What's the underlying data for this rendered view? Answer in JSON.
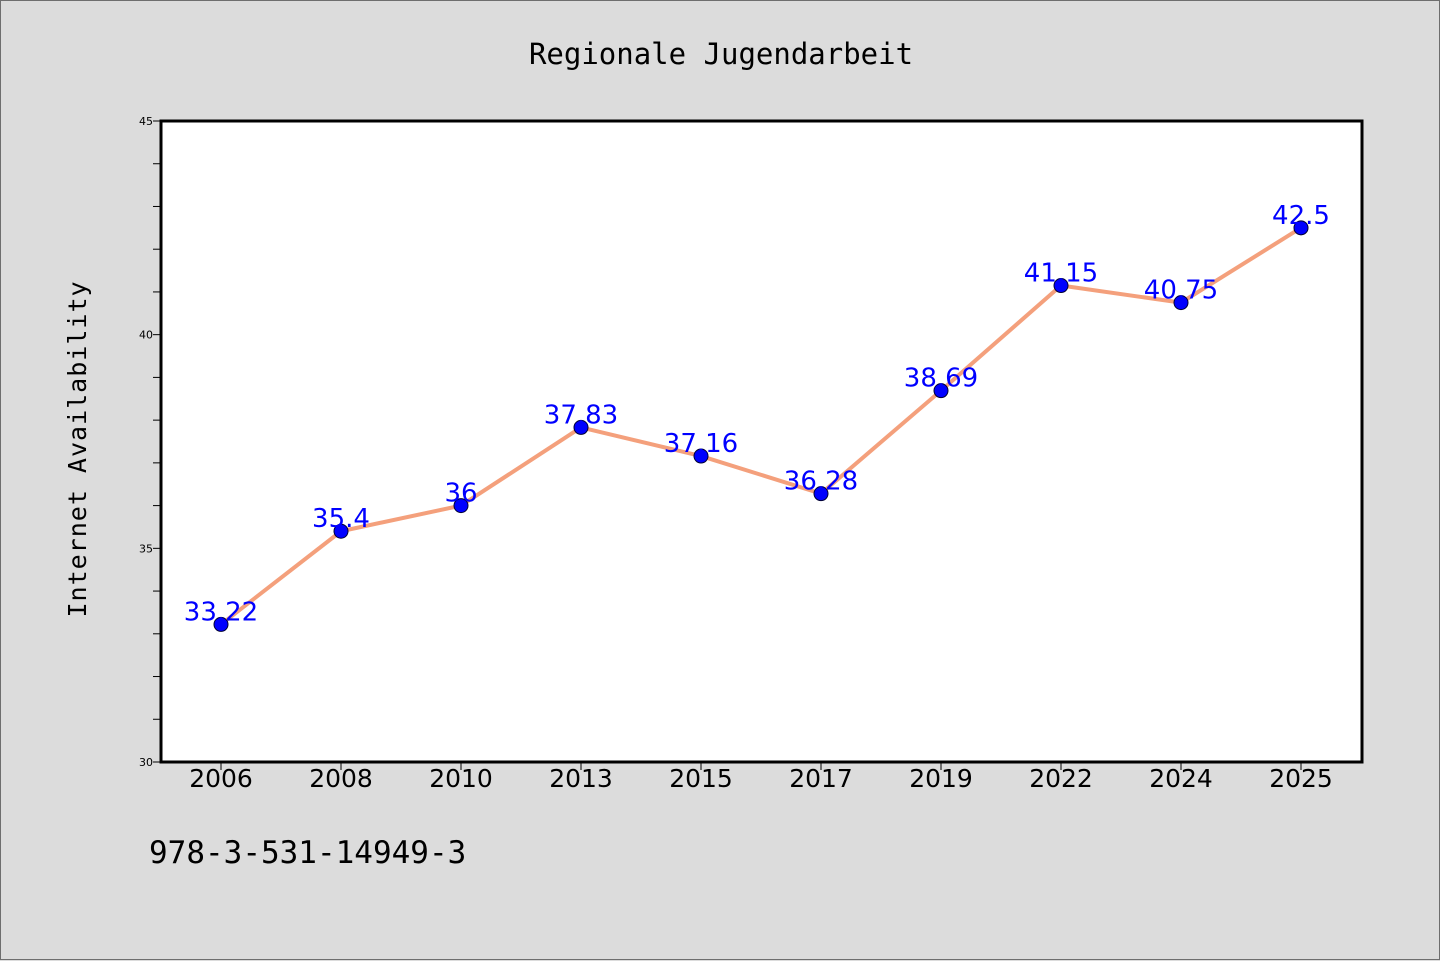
{
  "footer_code": "978-3-531-14949-3",
  "chart_data": {
    "type": "line",
    "title": "Regionale Jugendarbeit",
    "xlabel": "",
    "ylabel": "Internet Availability",
    "categories": [
      "2006",
      "2008",
      "2010",
      "2013",
      "2015",
      "2017",
      "2019",
      "2022",
      "2024",
      "2025"
    ],
    "series": [
      {
        "values": [
          33.22,
          35.4,
          36,
          37.83,
          37.16,
          36.28,
          38.69,
          41.15,
          40.75,
          42.5
        ],
        "labels": [
          "33.22",
          "35.4",
          "36",
          "37.83",
          "37.16",
          "36.28",
          "38.69",
          "41.15",
          "40.75",
          "42.5"
        ],
        "line_color": "#f4a07c",
        "marker_color": "#0000ff"
      }
    ],
    "ylim": [
      30,
      45
    ],
    "yticks": [
      "30",
      "35",
      "40",
      "45"
    ],
    "grid": false,
    "legend": "none"
  }
}
